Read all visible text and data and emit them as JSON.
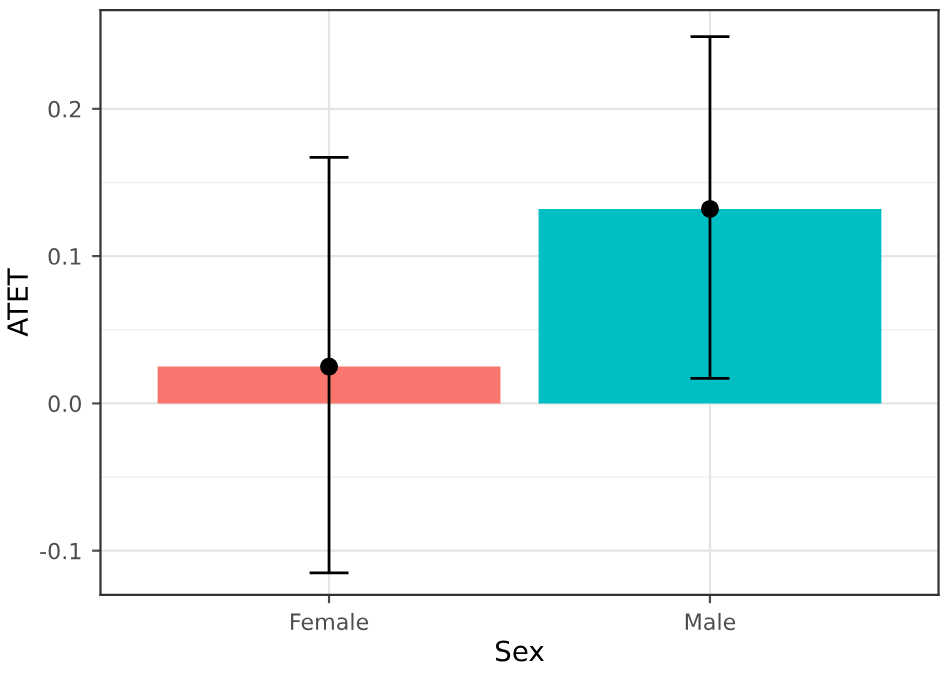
{
  "chart_data": {
    "type": "bar",
    "xlabel": "Sex",
    "ylabel": "ATET",
    "categories": [
      "Female",
      "Male"
    ],
    "series": [
      {
        "type": "bar",
        "colors": [
          "#f8766d",
          "#00bfc4"
        ],
        "values": [
          0.025,
          0.132
        ]
      },
      {
        "type": "scatter",
        "x": [
          "Female",
          "Male"
        ],
        "color": "#000000",
        "values": [
          0.025,
          0.132
        ],
        "errors": [
          [
            -0.115,
            0.167
          ],
          [
            0.017,
            0.249
          ]
        ]
      }
    ],
    "ylim": [
      -0.13,
      0.267
    ],
    "yticks": [
      -0.1,
      {
        "value": 0,
        "label": "0.0"
      },
      0.1,
      0.2
    ],
    "grid": true,
    "marker": "circle"
  }
}
